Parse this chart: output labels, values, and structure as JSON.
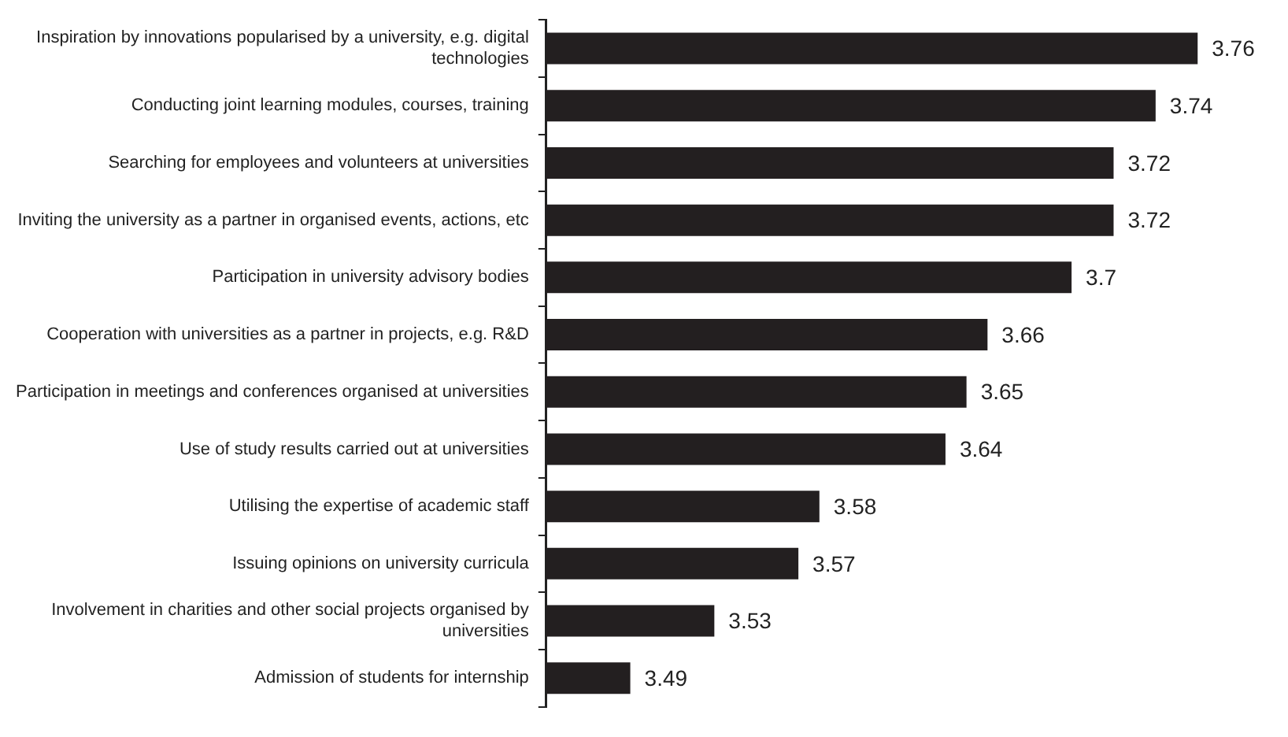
{
  "chart_data": {
    "type": "bar",
    "orientation": "horizontal",
    "categories": [
      "Inspiration by innovations popularised by a university, e.g. digital technologies",
      "Conducting joint learning modules, courses, training",
      "Searching for employees and volunteers at universities",
      "Inviting the university as a partner in organised events, actions, etc",
      "Participation in university advisory bodies",
      "Cooperation with universities as a partner in projects, e.g. R&D",
      "Participation in meetings and conferences organised at universities",
      "Use of study results carried out at universities",
      "Utilising the expertise of academic staff",
      "Issuing opinions on university curricula",
      "Involvement in charities and other social projects organised by universities",
      "Admission of students for internship"
    ],
    "values": [
      3.76,
      3.74,
      3.72,
      3.72,
      3.7,
      3.66,
      3.65,
      3.64,
      3.58,
      3.57,
      3.53,
      3.49
    ],
    "color": "#231f20",
    "data_labels": true,
    "grid": false,
    "legend": false
  }
}
